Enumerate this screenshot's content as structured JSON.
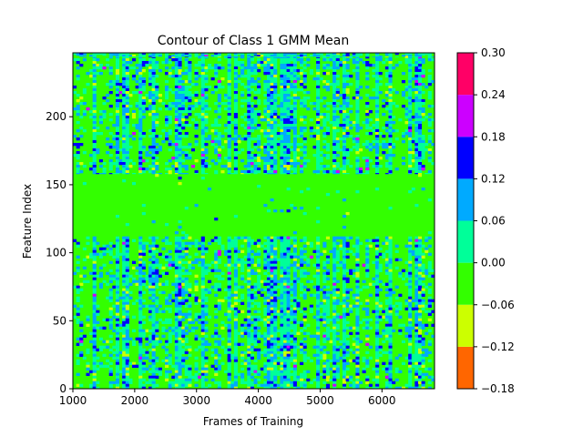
{
  "chart_data": {
    "type": "heatmap",
    "title": "Contour of Class 1 GMM Mean",
    "xlabel": "Frames of Training",
    "ylabel": "Feature Index",
    "xlim": [
      1000,
      6850
    ],
    "ylim": [
      0,
      247
    ],
    "x_ticks": [
      1000,
      2000,
      3000,
      4000,
      5000,
      6000
    ],
    "y_ticks": [
      0,
      50,
      100,
      150,
      200
    ],
    "bands": {
      "lower": [
        0,
        112
      ],
      "smooth": [
        112,
        158
      ],
      "upper": [
        158,
        247
      ]
    },
    "colorbar": {
      "levels": [
        -0.18,
        -0.12,
        -0.06,
        0.0,
        0.06,
        0.12,
        0.18,
        0.24,
        0.3
      ],
      "tick_labels": [
        "−0.18",
        "−0.12",
        "−0.06",
        "0.00",
        "0.06",
        "0.12",
        "0.18",
        "0.24",
        "0.30"
      ],
      "colors": [
        "#ff6600",
        "#ccff00",
        "#33ff00",
        "#00ff99",
        "#00aaff",
        "#0000ff",
        "#cc00ff",
        "#ff0066"
      ]
    }
  }
}
